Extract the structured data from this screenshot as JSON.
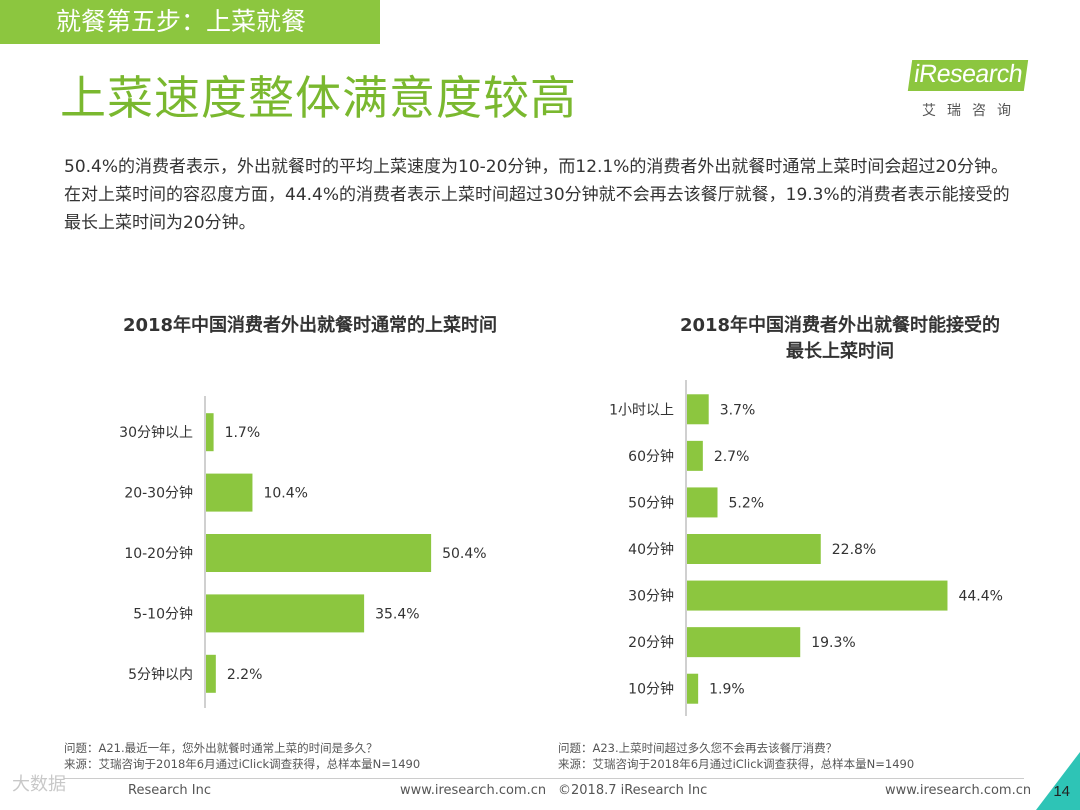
{
  "header": {
    "step_tab": "就餐第五步：上菜就餐",
    "title": "上菜速度整体满意度较高",
    "logo_word": "Research",
    "logo_i": "i",
    "logo_cn": "艾瑞咨询"
  },
  "summary": "50.4%的消费者表示，外出就餐时的平均上菜速度为10-20分钟，而12.1%的消费者外出就餐时通常上菜时间会超过20分钟。在对上菜时间的容忍度方面，44.4%的消费者表示上菜时间超过30分钟就不会再去该餐厅就餐，19.3%的消费者表示能接受的最长上菜时间为20分钟。",
  "colors": {
    "accent": "#8cc63f",
    "teal": "#2ec4b6",
    "axis": "#d0d0d0"
  },
  "chart_data": [
    {
      "type": "bar",
      "orientation": "horizontal",
      "title": "2018年中国消费者外出就餐时通常的上菜时间",
      "categories": [
        "30分钟以上",
        "20-30分钟",
        "10-20分钟",
        "5-10分钟",
        "5分钟以内"
      ],
      "values": [
        1.7,
        10.4,
        50.4,
        35.4,
        2.2
      ],
      "labels": [
        "1.7%",
        "10.4%",
        "50.4%",
        "35.4%",
        "2.2%"
      ],
      "unit": "%",
      "xlim": [
        0,
        60
      ]
    },
    {
      "type": "bar",
      "orientation": "horizontal",
      "title_lines": [
        "2018年中国消费者外出就餐时能接受的",
        "最长上菜时间"
      ],
      "categories": [
        "1小时以上",
        "60分钟",
        "50分钟",
        "40分钟",
        "30分钟",
        "20分钟",
        "10分钟"
      ],
      "values": [
        3.7,
        2.7,
        5.2,
        22.8,
        44.4,
        19.3,
        1.9
      ],
      "labels": [
        "3.7%",
        "2.7%",
        "5.2%",
        "22.8%",
        "44.4%",
        "19.3%",
        "1.9%"
      ],
      "unit": "%",
      "xlim": [
        0,
        60
      ]
    }
  ],
  "notes": {
    "left_q": "问题：A21.最近一年，您外出就餐时通常上菜的时间是多久？",
    "left_src": "来源：艾瑞咨询于2018年6月通过iClick调查获得，总样本量N=1490",
    "right_q": "问题：A23.上菜时间超过多久您不会再去该餐厅消费？",
    "right_src": "来源：艾瑞咨询于2018年6月通过iClick调查获得，总样本量N=1490"
  },
  "footer": {
    "company": "Research Inc",
    "url_left": "www.iresearch.com.cn",
    "copyright": "©2018.7 iResearch Inc",
    "url_right": "www.iresearch.com.cn",
    "page": "14",
    "watermark": "大数据"
  }
}
